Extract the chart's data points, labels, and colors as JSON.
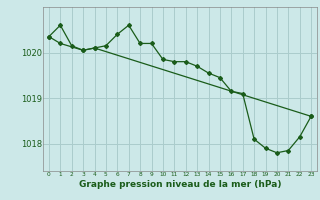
{
  "bg_color": "#cce8e8",
  "grid_color": "#aacccc",
  "line_color": "#1a5c1a",
  "xlim": [
    -0.5,
    23.5
  ],
  "ylim": [
    1017.4,
    1021.0
  ],
  "yticks": [
    1018,
    1019,
    1020
  ],
  "xticks": [
    0,
    1,
    2,
    3,
    4,
    5,
    6,
    7,
    8,
    9,
    10,
    11,
    12,
    13,
    14,
    15,
    16,
    17,
    18,
    19,
    20,
    21,
    22,
    23
  ],
  "series1_x": [
    0,
    1,
    2,
    3,
    4,
    5,
    6,
    7,
    8,
    9,
    10,
    11,
    12,
    13,
    14,
    15,
    16,
    17,
    18,
    19,
    20,
    21,
    22,
    23
  ],
  "series1_y": [
    1020.35,
    1020.6,
    1020.15,
    1020.05,
    1020.1,
    1020.15,
    1020.4,
    1020.6,
    1020.2,
    1020.2,
    1019.85,
    1019.8,
    1019.8,
    1019.7,
    1019.55,
    1019.45,
    1019.15,
    1019.1,
    1018.1,
    1017.9,
    1017.8,
    1017.85,
    1018.15,
    1018.6
  ],
  "series2_x": [
    0,
    1,
    3,
    4,
    23
  ],
  "series2_y": [
    1020.35,
    1020.2,
    1020.05,
    1020.1,
    1018.6
  ],
  "xlabel": "Graphe pression niveau de la mer (hPa)",
  "ytick_fontsize": 6.0,
  "xtick_fontsize": 4.2,
  "xlabel_fontsize": 6.5
}
